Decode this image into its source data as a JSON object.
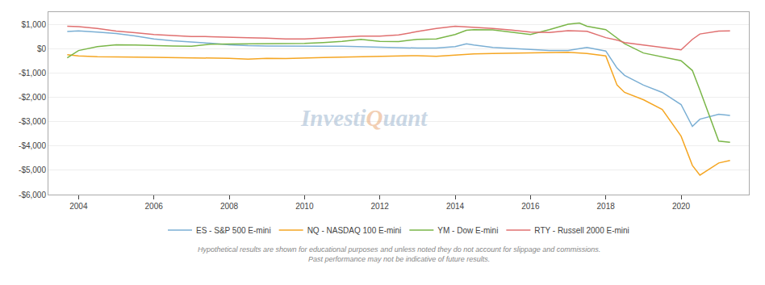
{
  "chart_data": {
    "type": "line",
    "xlim": [
      2003.2,
      2021.8
    ],
    "ylim": [
      -6000,
      1500
    ],
    "xticks": [
      2004,
      2006,
      2008,
      2010,
      2012,
      2014,
      2016,
      2018,
      2020
    ],
    "yticks": [
      {
        "value": 1000,
        "label": "$1,000"
      },
      {
        "value": 0,
        "label": "$0"
      },
      {
        "value": -1000,
        "label": "-$1,000"
      },
      {
        "value": -2000,
        "label": "-$2,000"
      },
      {
        "value": -3000,
        "label": "-$3,000"
      },
      {
        "value": -4000,
        "label": "-$4,000"
      },
      {
        "value": -5000,
        "label": "-$5,000"
      },
      {
        "value": -6000,
        "label": "-$6,000"
      }
    ],
    "grid": true,
    "legend": "bottom",
    "annotations": [
      {
        "text": "Investi",
        "color": "#a0b8d0"
      },
      {
        "text": "Q",
        "color": "#e8a878"
      },
      {
        "text": "uant",
        "color": "#a0b8d0"
      },
      {
        "text": "Hypothetical results are shown for educational purposes and unless noted they do not account for slippage and commissions.\nPast performance may not be indicative of future results.",
        "color": "#888888"
      }
    ],
    "series": [
      {
        "name": "ES - S&P 500 E-mini",
        "color": "#7bafd4",
        "x": [
          2003.7,
          2004.0,
          2004.5,
          2005.0,
          2005.5,
          2006.0,
          2006.5,
          2007.0,
          2007.5,
          2008.0,
          2008.5,
          2009.0,
          2009.5,
          2010.0,
          2010.5,
          2011.0,
          2011.5,
          2012.0,
          2012.5,
          2013.0,
          2013.5,
          2014.0,
          2014.3,
          2014.5,
          2015.0,
          2015.5,
          2016.0,
          2016.5,
          2017.0,
          2017.5,
          2018.0,
          2018.3,
          2018.5,
          2019.0,
          2019.5,
          2020.0,
          2020.3,
          2020.5,
          2021.0,
          2021.3
        ],
        "values": [
          700,
          730,
          680,
          620,
          520,
          400,
          320,
          280,
          220,
          160,
          120,
          110,
          100,
          100,
          100,
          100,
          80,
          50,
          30,
          20,
          20,
          80,
          200,
          150,
          50,
          0,
          -30,
          -80,
          -80,
          50,
          -100,
          -800,
          -1100,
          -1500,
          -1800,
          -2300,
          -3200,
          -2900,
          -2700,
          -2750
        ]
      },
      {
        "name": "NQ - NASDAQ 100 E-mini",
        "color": "#f5a623",
        "x": [
          2003.7,
          2004.0,
          2004.5,
          2005.0,
          2005.5,
          2006.0,
          2006.5,
          2007.0,
          2007.5,
          2008.0,
          2008.5,
          2009.0,
          2009.5,
          2010.0,
          2010.5,
          2011.0,
          2011.5,
          2012.0,
          2012.5,
          2013.0,
          2013.5,
          2014.0,
          2014.5,
          2015.0,
          2015.5,
          2016.0,
          2016.5,
          2017.0,
          2017.5,
          2018.0,
          2018.3,
          2018.5,
          2019.0,
          2019.5,
          2020.0,
          2020.3,
          2020.5,
          2021.0,
          2021.3
        ],
        "values": [
          -250,
          -300,
          -330,
          -350,
          -350,
          -360,
          -370,
          -380,
          -380,
          -400,
          -430,
          -400,
          -410,
          -400,
          -370,
          -350,
          -330,
          -320,
          -310,
          -290,
          -320,
          -270,
          -220,
          -200,
          -190,
          -190,
          -180,
          -150,
          -200,
          -300,
          -1500,
          -1800,
          -2100,
          -2500,
          -3600,
          -4800,
          -5200,
          -4700,
          -4600
        ]
      },
      {
        "name": "YM - Dow E-mini",
        "color": "#7ab648",
        "x": [
          2003.7,
          2004.0,
          2004.5,
          2005.0,
          2005.5,
          2006.0,
          2006.5,
          2007.0,
          2007.5,
          2008.0,
          2008.5,
          2009.0,
          2009.5,
          2010.0,
          2010.5,
          2011.0,
          2011.5,
          2012.0,
          2012.5,
          2013.0,
          2013.5,
          2014.0,
          2014.3,
          2014.5,
          2015.0,
          2015.5,
          2016.0,
          2016.5,
          2017.0,
          2017.3,
          2017.5,
          2018.0,
          2018.5,
          2019.0,
          2019.5,
          2020.0,
          2020.3,
          2020.5,
          2021.0,
          2021.3
        ],
        "values": [
          -380,
          -80,
          80,
          160,
          150,
          120,
          110,
          100,
          180,
          190,
          200,
          200,
          200,
          210,
          250,
          300,
          380,
          300,
          290,
          380,
          400,
          580,
          750,
          780,
          770,
          680,
          580,
          780,
          1000,
          1050,
          920,
          780,
          200,
          -180,
          -350,
          -500,
          -900,
          -1700,
          -3800,
          -3850
        ]
      },
      {
        "name": "RTY - Russell 2000 E-mini",
        "color": "#e07070",
        "x": [
          2003.7,
          2004.0,
          2004.5,
          2005.0,
          2005.5,
          2006.0,
          2006.5,
          2007.0,
          2007.5,
          2008.0,
          2008.5,
          2009.0,
          2009.5,
          2010.0,
          2010.5,
          2011.0,
          2011.5,
          2012.0,
          2012.5,
          2013.0,
          2013.5,
          2014.0,
          2014.3,
          2014.5,
          2015.0,
          2015.5,
          2016.0,
          2016.5,
          2017.0,
          2017.5,
          2018.0,
          2018.3,
          2018.5,
          2019.0,
          2019.5,
          2020.0,
          2020.3,
          2020.5,
          2021.0,
          2021.3
        ],
        "values": [
          920,
          900,
          830,
          720,
          650,
          580,
          540,
          500,
          490,
          480,
          450,
          430,
          400,
          400,
          430,
          460,
          510,
          510,
          560,
          700,
          830,
          920,
          900,
          870,
          830,
          760,
          680,
          660,
          740,
          710,
          450,
          350,
          250,
          150,
          50,
          -50,
          380,
          600,
          720,
          730
        ]
      }
    ]
  }
}
